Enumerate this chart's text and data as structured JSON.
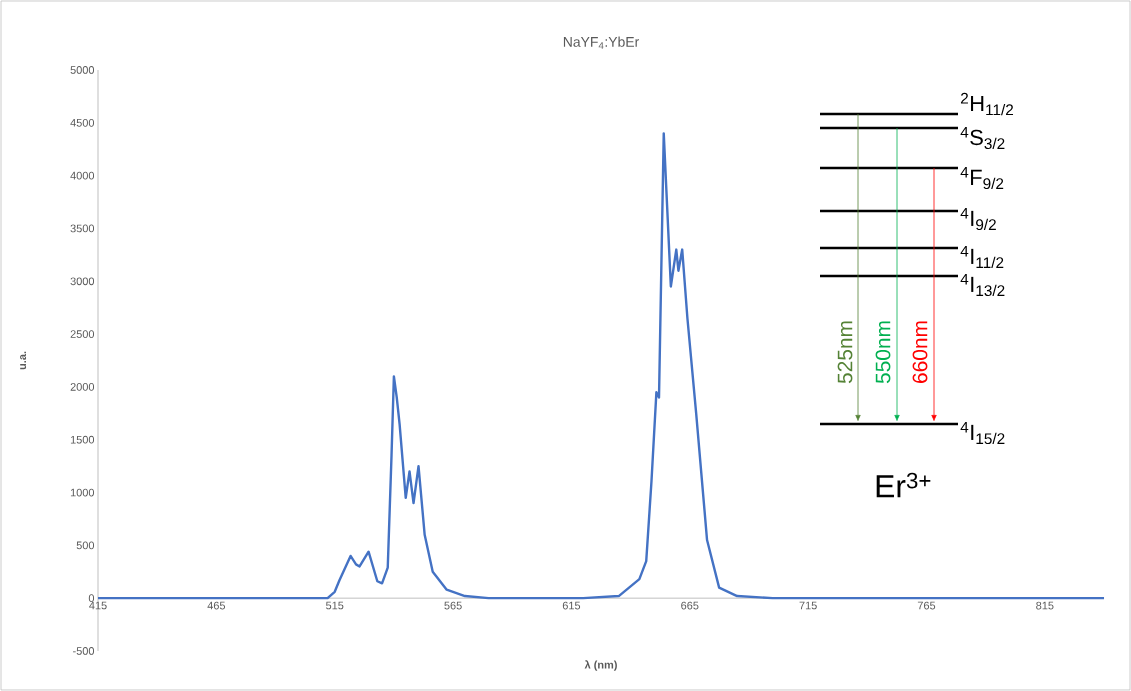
{
  "chart_data": {
    "type": "line",
    "title": "NaYF$_{4}$:YbEr",
    "xlabel": "λ (nm)",
    "ylabel": "u.a.",
    "x": [
      415,
      450,
      490,
      512,
      515,
      517,
      521.7,
      524,
      525.5,
      529.3,
      533,
      535,
      537.4,
      539,
      540,
      541.2,
      542.4,
      545,
      546.6,
      548.3,
      550.4,
      553,
      556.4,
      562.3,
      570,
      580,
      620,
      635,
      643.7,
      646.6,
      648.8,
      650.9,
      652,
      654,
      657,
      659.3,
      660.2,
      661.8,
      664,
      667.7,
      672.3,
      677.4,
      685,
      700,
      760,
      840
    ],
    "series": [
      {
        "color": "#4472c4",
        "values": [
          0,
          0,
          0,
          0,
          60,
          170,
          400,
          320,
          300,
          440,
          160,
          140,
          290,
          1350,
          2100,
          1900,
          1650,
          950,
          1200,
          900,
          1250,
          600,
          250,
          80,
          20,
          0,
          0,
          20,
          180,
          350,
          1100,
          1950,
          1900,
          4400,
          2950,
          3300,
          3100,
          3300,
          2650,
          1750,
          550,
          100,
          20,
          0,
          0,
          0
        ]
      }
    ],
    "xlim": [
      415,
      840
    ],
    "ylim": [
      -500,
      5000
    ],
    "xticks": [
      415,
      465,
      515,
      565,
      615,
      665,
      715,
      765,
      815
    ],
    "yticks": [
      -500,
      0,
      500,
      1000,
      1500,
      2000,
      2500,
      3000,
      3500,
      4000,
      4500,
      5000
    ],
    "annotations": [
      "$^{2}$H$_{11/2}$",
      "$^{4}$S$_{3/2}$",
      "$^{4}$F$_{9/2}$",
      "$^{4}$I$_{9/2}$",
      "$^{4}$I$_{11/2}$",
      "$^{4}$I$_{13/2}$",
      "$^{4}$I$_{15/2}$",
      "525nm",
      "550nm",
      "660nm",
      "Er$^{3+}$"
    ]
  }
}
